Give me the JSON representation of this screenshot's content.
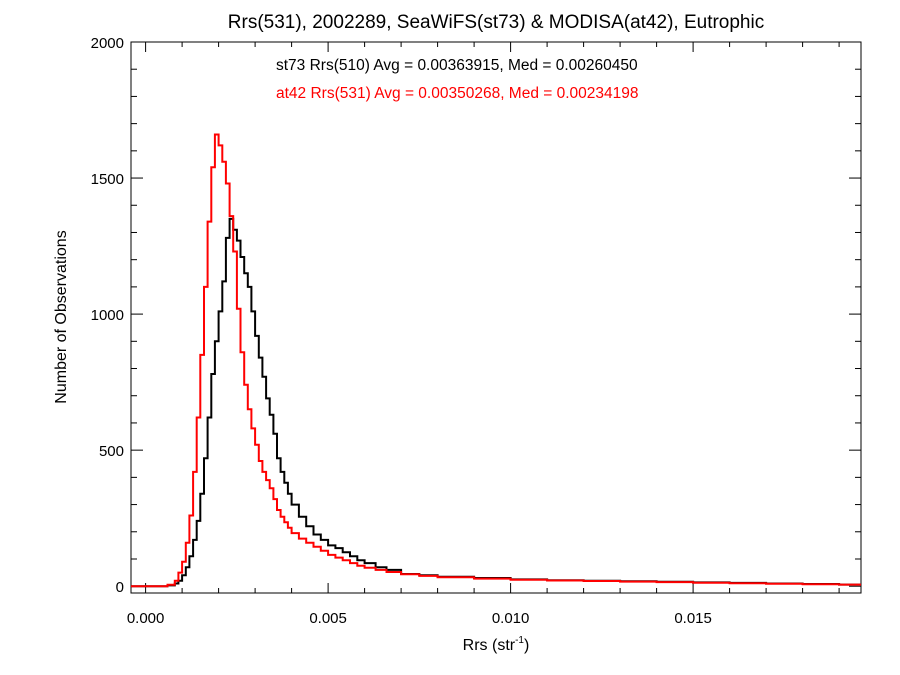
{
  "chart_data": {
    "type": "line",
    "title": "Rrs(531), 2002289, SeaWiFS(st73) & MODISA(at42), Eutrophic",
    "xlabel": "Rrs (str",
    "xlabel_sup": "-1",
    "xlabel_close": ")",
    "ylabel": "Number of Observations",
    "xlim": [
      -0.0004,
      0.0196
    ],
    "ylim": [
      -25,
      2000
    ],
    "xticks": [
      {
        "value": 0.0,
        "label": "0.000"
      },
      {
        "value": 0.005,
        "label": "0.005"
      },
      {
        "value": 0.01,
        "label": "0.010"
      },
      {
        "value": 0.015,
        "label": "0.015"
      }
    ],
    "yticks": [
      {
        "value": 0,
        "label": "0"
      },
      {
        "value": 500,
        "label": "500"
      },
      {
        "value": 1000,
        "label": "1000"
      },
      {
        "value": 1500,
        "label": "1500"
      },
      {
        "value": 2000,
        "label": "2000"
      }
    ],
    "grid": false,
    "annotations": [
      {
        "text": "st73 Rrs(510) Avg = 0.00363915, Med = 0.00260450",
        "color": "#000000"
      },
      {
        "text": "at42 Rrs(531) Avg = 0.00350268, Med = 0.00234198",
        "color": "#ff0000"
      }
    ],
    "series": [
      {
        "color": "#000000",
        "style": "step",
        "x": [
          -0.0004,
          0.0,
          0.0004,
          0.0006,
          0.0008,
          0.0009,
          0.001,
          0.0011,
          0.0012,
          0.0013,
          0.0014,
          0.0015,
          0.0016,
          0.0017,
          0.0018,
          0.0019,
          0.002,
          0.0021,
          0.0022,
          0.0023,
          0.0024,
          0.0025,
          0.0026,
          0.0027,
          0.0028,
          0.0029,
          0.003,
          0.0031,
          0.0032,
          0.0033,
          0.0034,
          0.0035,
          0.0036,
          0.0037,
          0.0038,
          0.0039,
          0.004,
          0.0042,
          0.0044,
          0.0046,
          0.0048,
          0.005,
          0.0052,
          0.0054,
          0.0056,
          0.0058,
          0.006,
          0.0063,
          0.0066,
          0.007,
          0.0075,
          0.008,
          0.009,
          0.01,
          0.011,
          0.012,
          0.013,
          0.014,
          0.015,
          0.016,
          0.017,
          0.018,
          0.019,
          0.0196
        ],
        "y": [
          0,
          0,
          0,
          3,
          10,
          20,
          40,
          70,
          110,
          170,
          240,
          340,
          470,
          620,
          780,
          900,
          1010,
          1120,
          1280,
          1350,
          1310,
          1270,
          1210,
          1150,
          1100,
          1010,
          920,
          840,
          770,
          690,
          630,
          560,
          470,
          420,
          380,
          340,
          300,
          255,
          220,
          190,
          170,
          150,
          140,
          125,
          110,
          95,
          85,
          70,
          60,
          45,
          40,
          35,
          30,
          25,
          22,
          20,
          18,
          16,
          14,
          12,
          10,
          8,
          6,
          5
        ]
      },
      {
        "color": "#ff0000",
        "style": "step",
        "x": [
          -0.0004,
          0.0,
          0.0004,
          0.0006,
          0.0008,
          0.0009,
          0.001,
          0.0011,
          0.0012,
          0.0013,
          0.0014,
          0.0015,
          0.0016,
          0.0017,
          0.0018,
          0.0019,
          0.002,
          0.0021,
          0.0022,
          0.0023,
          0.0024,
          0.0025,
          0.0026,
          0.0027,
          0.0028,
          0.0029,
          0.003,
          0.0031,
          0.0032,
          0.0033,
          0.0034,
          0.0035,
          0.0036,
          0.0037,
          0.0038,
          0.0039,
          0.004,
          0.0042,
          0.0044,
          0.0046,
          0.0048,
          0.005,
          0.0052,
          0.0054,
          0.0056,
          0.0058,
          0.006,
          0.0063,
          0.0066,
          0.007,
          0.0075,
          0.008,
          0.009,
          0.01,
          0.011,
          0.012,
          0.013,
          0.014,
          0.015,
          0.016,
          0.017,
          0.018,
          0.019,
          0.0196
        ],
        "y": [
          0,
          0,
          0,
          5,
          20,
          50,
          90,
          160,
          260,
          420,
          620,
          850,
          1100,
          1340,
          1540,
          1660,
          1620,
          1560,
          1480,
          1360,
          1230,
          1020,
          860,
          740,
          650,
          580,
          520,
          460,
          420,
          390,
          360,
          320,
          280,
          255,
          235,
          215,
          195,
          175,
          160,
          145,
          130,
          115,
          105,
          95,
          85,
          75,
          68,
          60,
          52,
          44,
          38,
          33,
          28,
          24,
          21,
          19,
          17,
          15,
          13,
          11,
          9,
          7,
          6,
          5
        ]
      }
    ]
  }
}
